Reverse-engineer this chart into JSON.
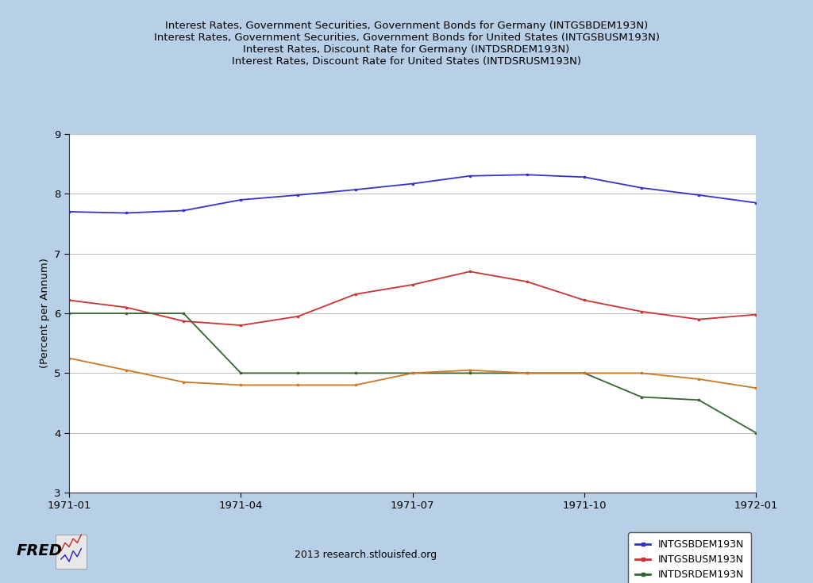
{
  "title_lines": [
    "Interest Rates, Government Securities, Government Bonds for Germany (INTGSBDEM193N)",
    "Interest Rates, Government Securities, Government Bonds for United States (INTGSBUSM193N)",
    "Interest Rates, Discount Rate for Germany (INTDSRDEM193N)",
    "Interest Rates, Discount Rate for United States (INTDSRUSM193N)"
  ],
  "ylabel": "(Percent per Annum)",
  "xlabel_ticks": [
    "1971-01",
    "1971-04",
    "1971-07",
    "1971-10",
    "1972-01"
  ],
  "ylim": [
    3,
    9
  ],
  "yticks": [
    3,
    4,
    5,
    6,
    7,
    8,
    9
  ],
  "background_color": "#b8cfe8",
  "plot_bg_color": "#ffffff",
  "footer_text": "2013 research.stlouisfed.org",
  "series": {
    "INTGSBDEM193N": {
      "color": "#3333cc",
      "label": "INTGSBDEM193N",
      "x": [
        0,
        1,
        2,
        3,
        4,
        5,
        6,
        7,
        8,
        9,
        10,
        11,
        12
      ],
      "y": [
        7.7,
        7.68,
        7.72,
        7.9,
        7.98,
        8.07,
        8.17,
        8.3,
        8.32,
        8.28,
        8.1,
        7.98,
        7.85
      ]
    },
    "INTGSBUSM193N": {
      "color": "#cc3333",
      "label": "INTGSBUSM193N",
      "x": [
        0,
        1,
        2,
        3,
        4,
        5,
        6,
        7,
        8,
        9,
        10,
        11,
        12
      ],
      "y": [
        6.22,
        6.1,
        5.87,
        5.8,
        5.95,
        6.32,
        6.48,
        6.7,
        6.53,
        6.22,
        6.03,
        5.9,
        5.98
      ]
    },
    "INTDSRDEM193N": {
      "color": "#336633",
      "label": "INTDSRDEM193N",
      "x": [
        0,
        1,
        2,
        3,
        4,
        5,
        6,
        7,
        8,
        9,
        10,
        11,
        12
      ],
      "y": [
        6.0,
        6.0,
        6.0,
        5.0,
        5.0,
        5.0,
        5.0,
        5.0,
        5.0,
        5.0,
        4.6,
        4.55,
        4.0
      ]
    },
    "INTDSRUSM193N": {
      "color": "#cc7722",
      "label": "INTDSRUSM193N",
      "x": [
        0,
        1,
        2,
        3,
        4,
        5,
        6,
        7,
        8,
        9,
        10,
        11,
        12
      ],
      "y": [
        5.25,
        5.05,
        4.85,
        4.8,
        4.8,
        4.8,
        5.0,
        5.05,
        5.0,
        5.0,
        5.0,
        4.9,
        4.75
      ]
    }
  },
  "title_fontsize": 9.5,
  "axis_label_fontsize": 9.5,
  "tick_fontsize": 9.5,
  "legend_fontsize": 9
}
